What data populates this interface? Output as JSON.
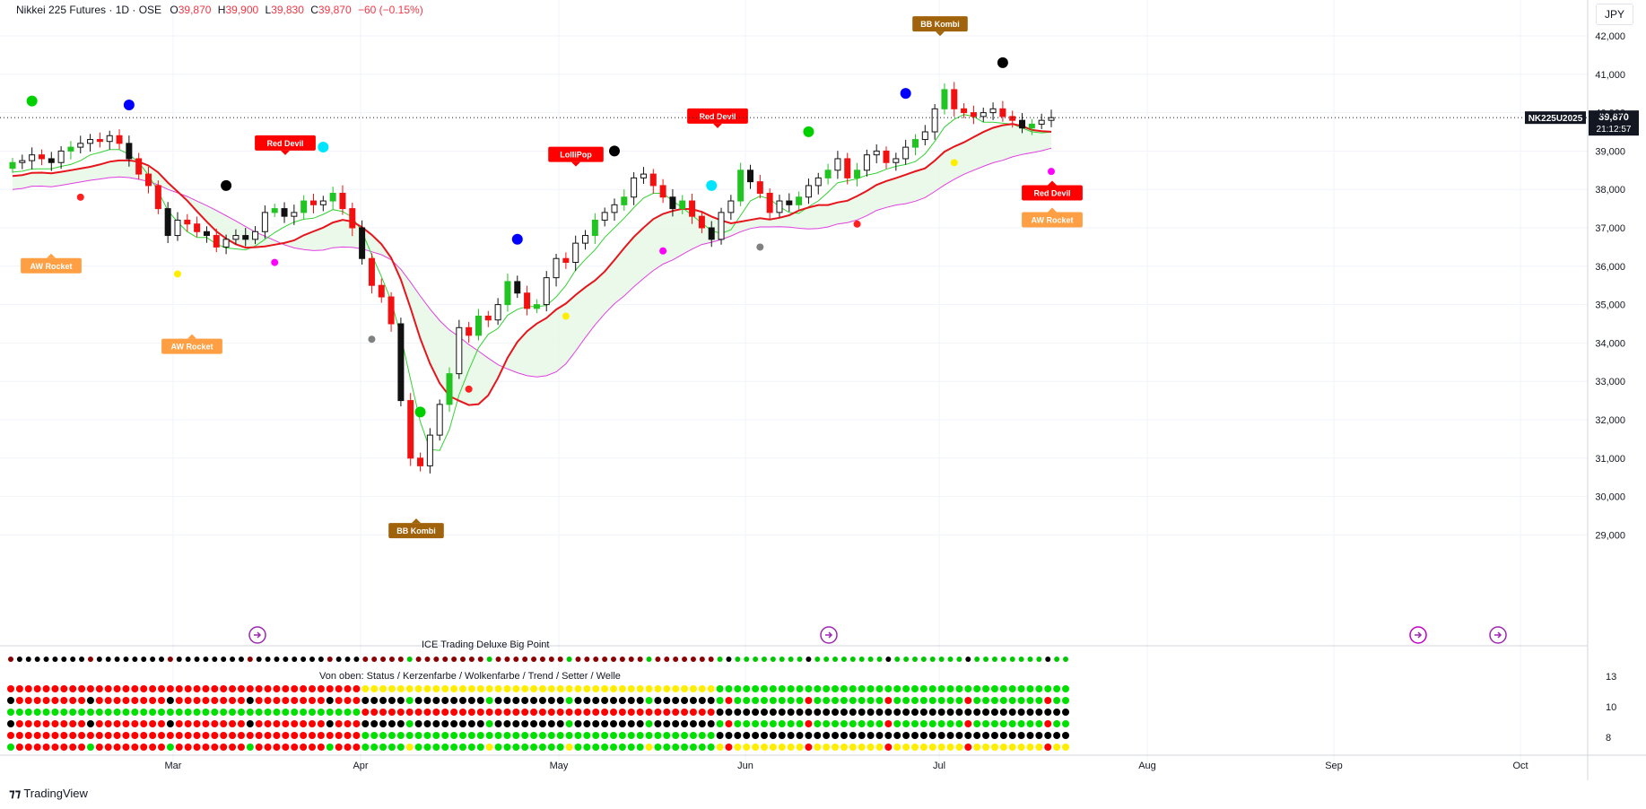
{
  "header": {
    "title": "Nikkei 225 Futures · 1D · OSE",
    "open_label": "O",
    "open": "39,870",
    "high_label": "H",
    "high": "39,900",
    "low_label": "L",
    "low": "39,830",
    "close_label": "C",
    "close": "39,870",
    "change": "−60 (−0.15%)"
  },
  "currency": "JPY",
  "price_tag": {
    "symbol": "NK225U2025",
    "price": "39,870",
    "countdown": "21:12:57"
  },
  "branding": "TradingView",
  "indicator": {
    "title": "ICE Trading Deluxe Big Point",
    "subtitle": "Von oben: Status / Kerzenfarbe / Wolkenfarbe / Trend / Setter / Welle",
    "scale_labels": [
      "13",
      "10",
      "8"
    ]
  },
  "colors": {
    "up": "#21c421",
    "down": "#f21010",
    "cloud_up": "#e8f8e8",
    "cloud_down": "#fde2f6",
    "line_red": "#e8141c",
    "line_green": "#33d233",
    "line_magenta": "#e040e0"
  },
  "chart_data": {
    "type": "candlestick",
    "title": "Nikkei 225 Futures · 1D · OSE",
    "y_axis": {
      "ticks": [
        "29,000",
        "30,000",
        "31,000",
        "32,000",
        "33,000",
        "34,000",
        "35,000",
        "36,000",
        "37,000",
        "38,000",
        "39,000",
        "40,000",
        "41,000",
        "42,000"
      ],
      "ylim": [
        28600,
        42600
      ]
    },
    "x_axis": {
      "ticks": [
        "Mar",
        "Apr",
        "May",
        "Jun",
        "Jul",
        "Aug",
        "Sep",
        "Oct"
      ]
    },
    "last_price": 39870,
    "close_series_approx": [
      38700,
      38750,
      38900,
      38800,
      38700,
      39000,
      39100,
      39200,
      39300,
      39250,
      39400,
      39200,
      38800,
      38400,
      38100,
      37500,
      36800,
      37200,
      37100,
      36900,
      36800,
      36500,
      36700,
      36800,
      36700,
      36900,
      37400,
      37500,
      37300,
      37400,
      37700,
      37600,
      37700,
      37900,
      37500,
      37000,
      36200,
      35500,
      35200,
      34500,
      32500,
      31000,
      30800,
      31600,
      32400,
      33200,
      34400,
      34200,
      34700,
      34600,
      35000,
      35600,
      35300,
      34900,
      35000,
      35700,
      36200,
      36100,
      36600,
      36800,
      37200,
      37400,
      37600,
      37800,
      38300,
      38400,
      38100,
      37800,
      37500,
      37700,
      37300,
      37000,
      36700,
      37400,
      37700,
      38500,
      38200,
      37900,
      37400,
      37700,
      37600,
      37800,
      38100,
      38300,
      38500,
      38800,
      38300,
      38500,
      38900,
      39000,
      38700,
      38800,
      39100,
      39300,
      39500,
      40100,
      40600,
      40100,
      40000,
      39900,
      40000,
      40100,
      39900,
      39800,
      39600,
      39700,
      39800,
      39870
    ],
    "annotations": [
      "AW Rocket",
      "AW Rocket",
      "Red Devil",
      "BB Kombi",
      "LolliPop",
      "Red Devil",
      "BB Kombi",
      "Red Devil",
      "AW Rocket"
    ]
  }
}
